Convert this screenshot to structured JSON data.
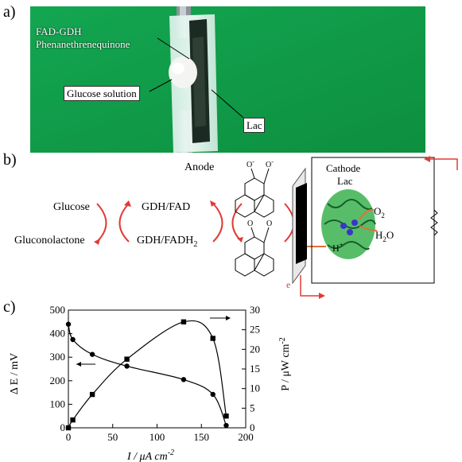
{
  "panels": {
    "a": "a)",
    "b": "b)",
    "c": "c)"
  },
  "photo": {
    "label_enzyme": "FAD-GDH",
    "label_mediator": "Phenanethrenequinone",
    "label_glucose": "Glucose solution",
    "label_lac": "Lac"
  },
  "scheme": {
    "anode": "Anode",
    "cathode": "Cathode",
    "lac": "Lac",
    "glucose": "Glucose",
    "gluconolactone": "Gluconolactone",
    "gdh_fad": "GDH/FAD",
    "gdh_fadh2": "GDH/FADH",
    "gdh_fadh2_sub": "2",
    "o2": "O",
    "o2_sub": "2",
    "h2o_a": "H",
    "h2o_sub": "2",
    "h2o_b": "O",
    "hplus": "H",
    "hplus_sup": "+",
    "electron": "e",
    "o_minus_sup": "-",
    "o": "O"
  },
  "chart_data": {
    "type": "line",
    "xlabel": "I / μA cm",
    "xlabel_sup": "-2",
    "ylabel_left": "Δ E / mV",
    "ylabel_right": "P / μW cm",
    "ylabel_right_sup": "-2",
    "xlim": [
      0,
      200
    ],
    "ylim_left": [
      0,
      500
    ],
    "ylim_right": [
      0,
      30
    ],
    "x_ticks": [
      "0",
      "50",
      "100",
      "150",
      "200"
    ],
    "y_left_ticks": [
      "0",
      "100",
      "200",
      "300",
      "400",
      "500"
    ],
    "y_right_ticks": [
      "0",
      "5",
      "10",
      "15",
      "20",
      "25",
      "30"
    ],
    "series": [
      {
        "axis": "left",
        "marker": "circle",
        "x": [
          0,
          5,
          27,
          66,
          130,
          163,
          178
        ],
        "y": [
          440,
          375,
          312,
          262,
          205,
          142,
          10
        ]
      },
      {
        "axis": "right",
        "marker": "square",
        "x": [
          0,
          5,
          27,
          66,
          130,
          163,
          178
        ],
        "y": [
          0,
          2,
          8.5,
          17.5,
          27,
          22.8,
          3
        ]
      }
    ]
  }
}
